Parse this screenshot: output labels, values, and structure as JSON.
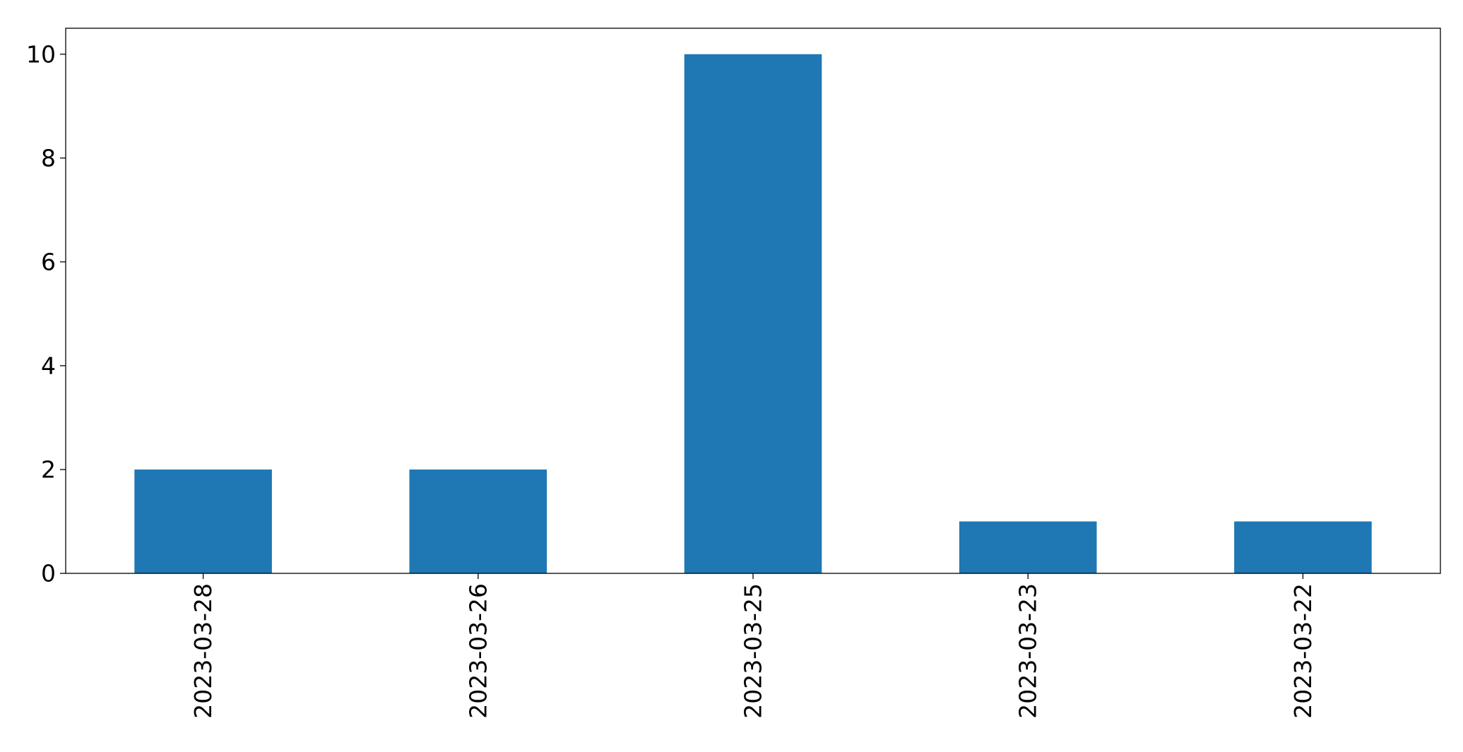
{
  "chart_data": {
    "type": "bar",
    "title": "",
    "xlabel": "",
    "ylabel": "",
    "categories": [
      "2023-03-28",
      "2023-03-26",
      "2023-03-25",
      "2023-03-23",
      "2023-03-22"
    ],
    "values": [
      2,
      2,
      10,
      1,
      1
    ],
    "ylim": [
      0,
      10.5
    ],
    "yticks": [
      0,
      2,
      4,
      6,
      8,
      10
    ],
    "ytick_labels": [
      "0",
      "2",
      "4",
      "6",
      "8",
      "10"
    ],
    "bar_color": "#1f77b4",
    "grid": false,
    "legend": "none"
  }
}
